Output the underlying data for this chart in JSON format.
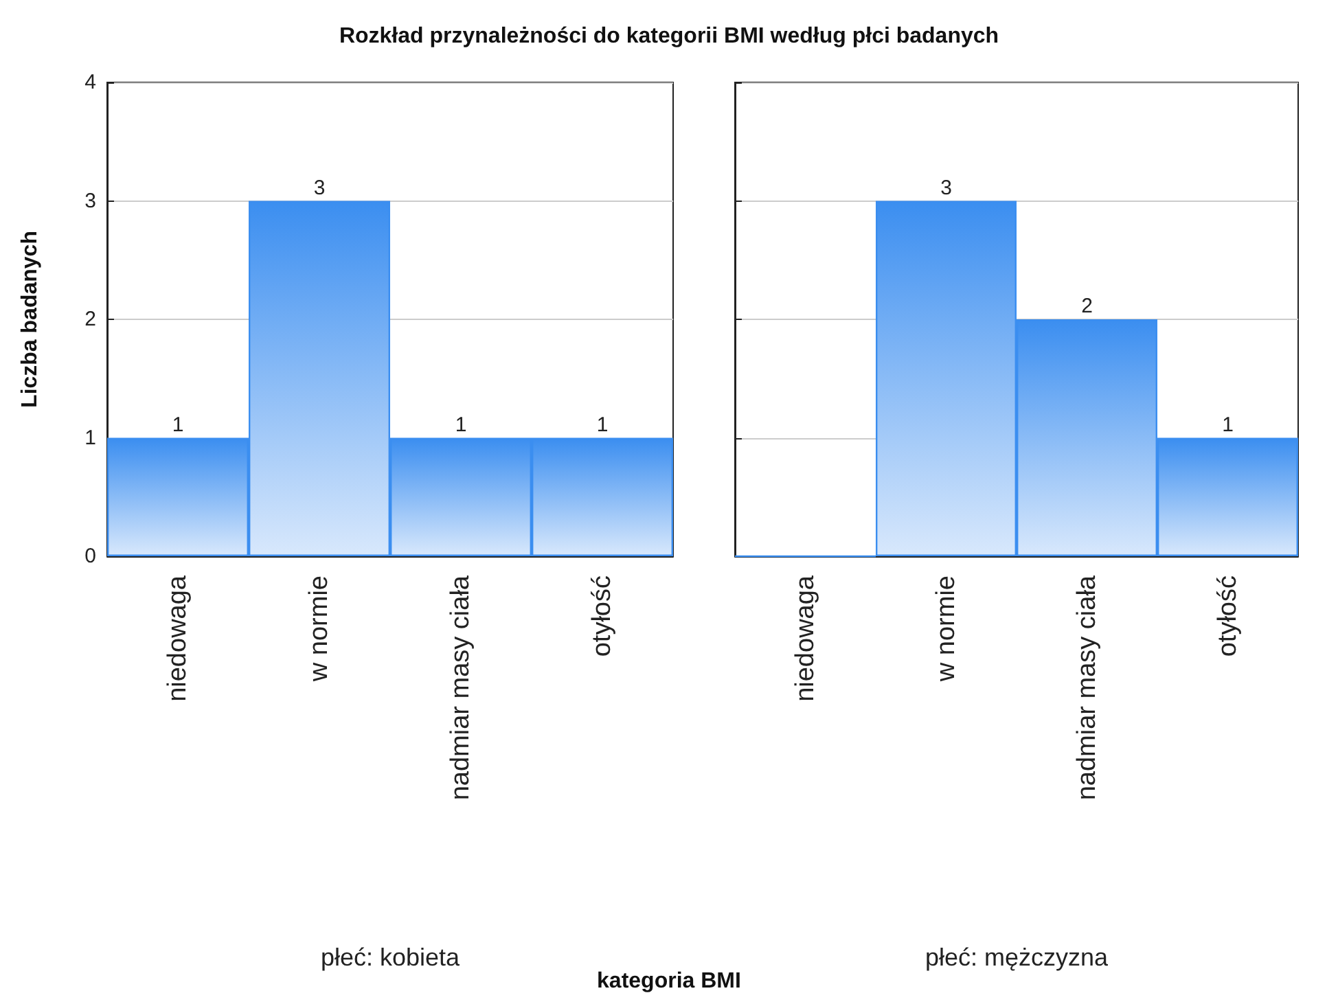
{
  "chart_data": [
    {
      "type": "bar",
      "title": "Rozkład przynależności do kategorii BMI według płci badanych",
      "ylabel": "Liczba badanych",
      "xlabel": "płeć: kobieta",
      "annotations": [
        "kategoria BMI"
      ],
      "categories": [
        "niedowaga",
        "w normie",
        "nadmiar masy ciała",
        "otyłość"
      ],
      "values": [
        1,
        3,
        1,
        1
      ],
      "value_labels": [
        "1",
        "3",
        "1",
        "1"
      ],
      "color": "#3b8ef0",
      "ylim": [
        0,
        4
      ],
      "yticks": [
        0,
        1,
        2,
        3,
        4
      ],
      "grid": "y"
    },
    {
      "type": "bar",
      "xlabel": "płeć: mężczyzna",
      "categories": [
        "niedowaga",
        "w normie",
        "nadmiar masy ciała",
        "otyłość"
      ],
      "values": [
        0,
        3,
        2,
        1
      ],
      "value_labels": [
        null,
        "3",
        "2",
        "1"
      ],
      "color": "#3b8ef0",
      "ylim": [
        0,
        4
      ],
      "yticks": [
        0,
        1,
        2,
        3,
        4
      ],
      "grid": "y",
      "tick_labels": "x"
    }
  ]
}
